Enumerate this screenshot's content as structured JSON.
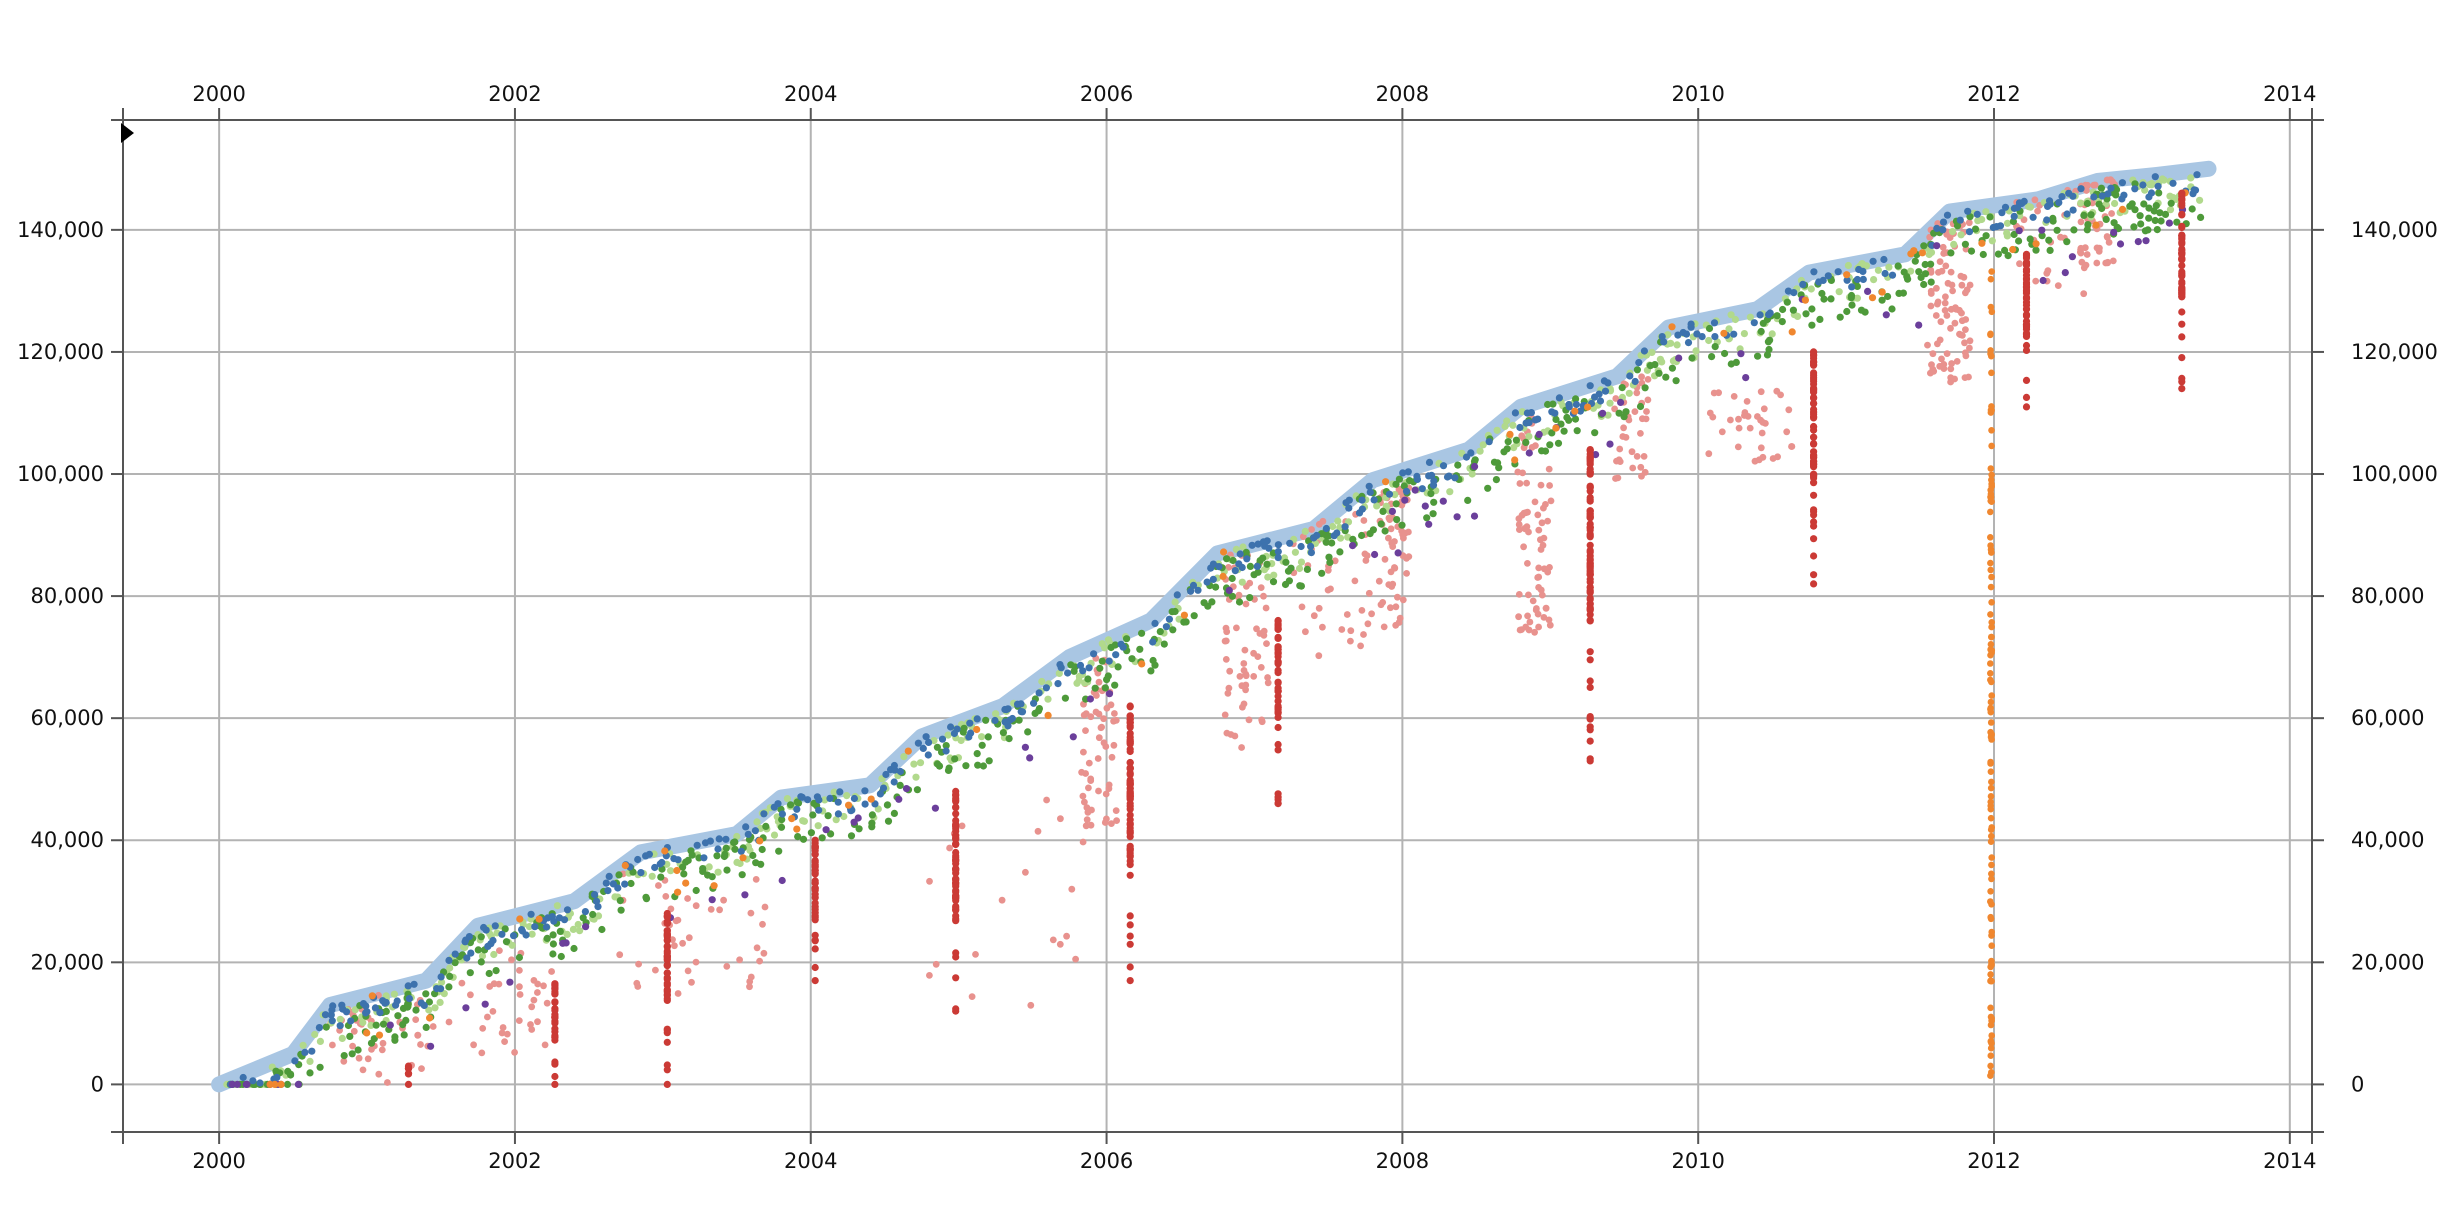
{
  "chart_data": {
    "type": "scatter",
    "title": "",
    "xlabel": "",
    "ylabel": "",
    "xlim": [
      1999.35,
      2014.15
    ],
    "ylim": [
      -7800,
      158000
    ],
    "x_ticks": [
      {
        "value": 2000,
        "label": "2000"
      },
      {
        "value": 2002,
        "label": "2002"
      },
      {
        "value": 2004,
        "label": "2004"
      },
      {
        "value": 2006,
        "label": "2006"
      },
      {
        "value": 2008,
        "label": "2008"
      },
      {
        "value": 2010,
        "label": "2010"
      },
      {
        "value": 2012,
        "label": "2012"
      },
      {
        "value": 2014,
        "label": "2014"
      }
    ],
    "y_ticks": [
      {
        "value": 0,
        "label": "0"
      },
      {
        "value": 20000,
        "label": "20,000"
      },
      {
        "value": 40000,
        "label": "40,000"
      },
      {
        "value": 60000,
        "label": "60,000"
      },
      {
        "value": 80000,
        "label": "80,000"
      },
      {
        "value": 100000,
        "label": "100,000"
      },
      {
        "value": 120000,
        "label": "120,000"
      },
      {
        "value": 140000,
        "label": "140,000"
      }
    ],
    "grid": true,
    "axes": "x-ticks top and bottom, y-ticks left and right",
    "envelope": {
      "color": "#a9c6e3",
      "x": [
        2000.0,
        2000.5,
        2000.75,
        2001.4,
        2001.75,
        2002.4,
        2002.85,
        2003.5,
        2003.8,
        2004.4,
        2004.75,
        2005.3,
        2005.75,
        2006.3,
        2006.75,
        2007.4,
        2007.8,
        2008.45,
        2008.8,
        2009.45,
        2009.8,
        2010.4,
        2010.75,
        2011.4,
        2011.7,
        2012.3,
        2012.7,
        2013.1,
        2013.45
      ],
      "y": [
        0,
        5000,
        13000,
        17000,
        26000,
        30000,
        38000,
        41000,
        47000,
        49000,
        57000,
        62000,
        70000,
        76000,
        87000,
        91000,
        99000,
        104000,
        111000,
        116000,
        124000,
        127000,
        133000,
        136000,
        143000,
        145000,
        148000,
        149000,
        150000
      ]
    },
    "series": [
      {
        "color": "#e8928e",
        "note": "scattered below main trend",
        "clusters": [
          {
            "x": 2001.1,
            "y_range": [
              0,
              15000
            ],
            "n": 40,
            "x_jitter": 0.35
          },
          {
            "x": 2001.9,
            "y_range": [
              5000,
              22000
            ],
            "n": 35,
            "x_jitter": 0.35
          },
          {
            "x": 2003.2,
            "y_range": [
              14000,
              35000
            ],
            "n": 40,
            "x_jitter": 0.5
          },
          {
            "x": 2005.3,
            "y_range": [
              12000,
              50000
            ],
            "n": 20,
            "x_jitter": 0.6
          },
          {
            "x": 2005.95,
            "y_range": [
              42000,
              70000
            ],
            "n": 60,
            "x_jitter": 0.12
          },
          {
            "x": 2006.95,
            "y_range": [
              55000,
              88000
            ],
            "n": 60,
            "x_jitter": 0.15
          },
          {
            "x": 2007.55,
            "y_range": [
              70000,
              95000
            ],
            "n": 40,
            "x_jitter": 0.3
          },
          {
            "x": 2007.95,
            "y_range": [
              73000,
              98000
            ],
            "n": 55,
            "x_jitter": 0.1
          },
          {
            "x": 2008.9,
            "y_range": [
              74000,
              110000
            ],
            "n": 70,
            "x_jitter": 0.12
          },
          {
            "x": 2009.55,
            "y_range": [
              99000,
              116000
            ],
            "n": 35,
            "x_jitter": 0.12
          },
          {
            "x": 2010.35,
            "y_range": [
              102000,
              114000
            ],
            "n": 35,
            "x_jitter": 0.3
          },
          {
            "x": 2011.7,
            "y_range": [
              115000,
              142000
            ],
            "n": 90,
            "x_jitter": 0.15
          },
          {
            "x": 2012.4,
            "y_range": [
              128000,
              148000
            ],
            "n": 25,
            "x_jitter": 0.25
          },
          {
            "x": 2012.7,
            "y_range": [
              134000,
              150000
            ],
            "n": 45,
            "x_jitter": 0.12
          }
        ]
      },
      {
        "color": "#b1d98c",
        "note": "light green band along trend",
        "band_offset": [
          -6000,
          0
        ],
        "n": 420
      },
      {
        "color": "#4e9a3a",
        "note": "dark green points along trend",
        "band_offset": [
          -9000,
          -1000
        ],
        "n": 520
      },
      {
        "color": "#3d72ad",
        "note": "blue points along upper edge",
        "band_offset": [
          -4000,
          0
        ],
        "n": 360
      },
      {
        "color": "#6b3f9b",
        "note": "purple points",
        "band_offset": [
          -14000,
          -3000
        ],
        "n": 70
      },
      {
        "color": "#f0872f",
        "note": "orange points",
        "band_offset": [
          -8000,
          0
        ],
        "n": 50,
        "column": {
          "x": 2011.98,
          "y_range": [
            1000,
            135000
          ],
          "n": 110
        }
      },
      {
        "color": "#cb3a35",
        "note": "red vertical release columns",
        "columns": [
          {
            "x": 2001.28,
            "y_range": [
              0,
              3000
            ]
          },
          {
            "x": 2002.27,
            "y_range": [
              0,
              16500
            ]
          },
          {
            "x": 2003.03,
            "y_range": [
              0,
              28000
            ]
          },
          {
            "x": 2004.03,
            "y_range": [
              17000,
              40000
            ]
          },
          {
            "x": 2004.98,
            "y_range": [
              12000,
              48000
            ]
          },
          {
            "x": 2006.16,
            "y_range": [
              17000,
              62000
            ]
          },
          {
            "x": 2007.16,
            "y_range": [
              46000,
              76000
            ]
          },
          {
            "x": 2009.27,
            "y_range": [
              53000,
              104000
            ]
          },
          {
            "x": 2010.78,
            "y_range": [
              82000,
              120000
            ]
          },
          {
            "x": 2012.22,
            "y_range": [
              111000,
              136000
            ]
          },
          {
            "x": 2013.27,
            "y_range": [
              114000,
              146000
            ]
          }
        ]
      }
    ]
  }
}
